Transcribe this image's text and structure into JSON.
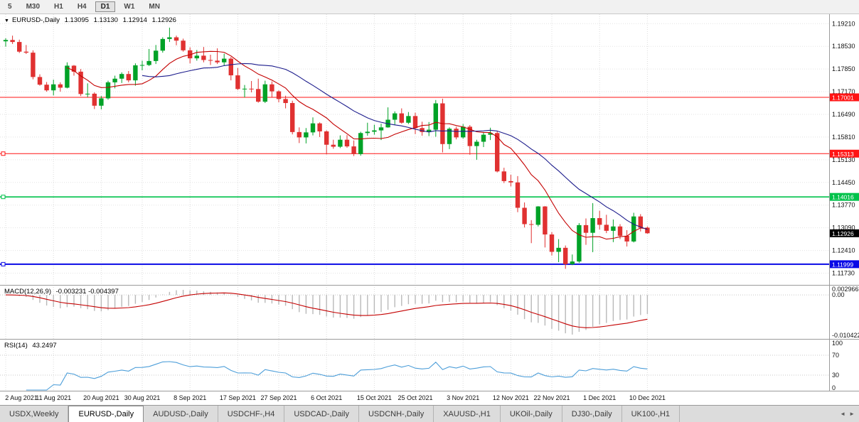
{
  "toolbar": {
    "timeframes": [
      {
        "label": "5",
        "active": false
      },
      {
        "label": "M30",
        "active": false
      },
      {
        "label": "H1",
        "active": false
      },
      {
        "label": "H4",
        "active": false
      },
      {
        "label": "D1",
        "active": true
      },
      {
        "label": "W1",
        "active": false
      },
      {
        "label": "MN",
        "active": false
      }
    ]
  },
  "chart": {
    "symbol": "EURUSD-,Daily",
    "open": "1.13095",
    "high": "1.13130",
    "low": "1.12914",
    "close": "1.12926"
  },
  "indicators": {
    "macd": {
      "name": "MACD(12,26,9)",
      "values": "-0.003231 -0.004397",
      "params": {
        "fast": 12,
        "slow": 26,
        "signal": 9
      },
      "axis": [
        "0.002966",
        "0.00",
        "-0.010422"
      ]
    },
    "rsi": {
      "name": "RSI(14)",
      "value": "43.2497",
      "period": 14,
      "levels": [
        70,
        30
      ],
      "axis": [
        "100",
        "70",
        "30",
        "0"
      ]
    }
  },
  "colors": {
    "bull": "#00A227",
    "bear": "#E03131",
    "ma_fast": "#C40000",
    "ma_slow": "#1C1C8C",
    "macd_hist": "#B9B9B9",
    "macd_signal": "#C40000",
    "rsi": "#4C9ED9",
    "grid": "#DDDDDD"
  },
  "chart_data": {
    "type": "candlestick",
    "symbol": "EURUSD",
    "timeframe": "Daily",
    "price_axis": {
      "labels": [
        1.1921,
        1.1853,
        1.1785,
        1.1717,
        1.1649,
        1.1581,
        1.1513,
        1.1445,
        1.1377,
        1.1309,
        1.1241,
        1.1173
      ],
      "max_view": 1.1945,
      "min_view": 1.114
    },
    "x_ticks": [
      {
        "i": 0,
        "label": "2 Aug 2021"
      },
      {
        "i": 7,
        "label": "11 Aug 2021"
      },
      {
        "i": 14,
        "label": "20 Aug 2021"
      },
      {
        "i": 20,
        "label": "30 Aug 2021"
      },
      {
        "i": 27,
        "label": "8 Sep 2021"
      },
      {
        "i": 34,
        "label": "17 Sep 2021"
      },
      {
        "i": 40,
        "label": "27 Sep 2021"
      },
      {
        "i": 47,
        "label": "6 Oct 2021"
      },
      {
        "i": 54,
        "label": "15 Oct 2021"
      },
      {
        "i": 60,
        "label": "25 Oct 2021"
      },
      {
        "i": 67,
        "label": "3 Nov 2021"
      },
      {
        "i": 74,
        "label": "12 Nov 2021"
      },
      {
        "i": 80,
        "label": "22 Nov 2021"
      },
      {
        "i": 87,
        "label": "1 Dec 2021"
      },
      {
        "i": 94,
        "label": "10 Dec 2021"
      }
    ],
    "hlines": [
      {
        "value": 1.17001,
        "label": "1.17001",
        "color": "#FF1414",
        "width": 1,
        "handle": false
      },
      {
        "value": 1.15313,
        "label": "1.15313",
        "color": "#FF1414",
        "width": 1,
        "handle": true
      },
      {
        "value": 1.14016,
        "label": "1.14016",
        "color": "#00C24B",
        "width": 1.6,
        "handle": true
      },
      {
        "value": 1.11999,
        "label": "1.11999",
        "color": "#0A0AE6",
        "width": 2,
        "handle": true
      }
    ],
    "price_tag": {
      "value": 1.12926,
      "label": "1.12926",
      "color": "#000000"
    },
    "moving_averages": [
      {
        "period": 10,
        "color": "#C40000"
      },
      {
        "period": 21,
        "color": "#1C1C8C"
      }
    ],
    "candles": [
      [
        1.1868,
        1.1877,
        1.1852,
        1.1872
      ],
      [
        1.1872,
        1.1885,
        1.186,
        1.1866
      ],
      [
        1.1866,
        1.1873,
        1.1833,
        1.1837
      ],
      [
        1.1837,
        1.1857,
        1.183,
        1.1834
      ],
      [
        1.1834,
        1.1841,
        1.1754,
        1.1761
      ],
      [
        1.1761,
        1.1769,
        1.1735,
        1.1738
      ],
      [
        1.1738,
        1.1746,
        1.1717,
        1.1721
      ],
      [
        1.1721,
        1.1753,
        1.1706,
        1.1739
      ],
      [
        1.1739,
        1.1745,
        1.1717,
        1.1729
      ],
      [
        1.1729,
        1.1805,
        1.1727,
        1.1795
      ],
      [
        1.1795,
        1.1797,
        1.1765,
        1.1777
      ],
      [
        1.1777,
        1.1785,
        1.1704,
        1.171
      ],
      [
        1.171,
        1.1742,
        1.1701,
        1.1711
      ],
      [
        1.1711,
        1.1715,
        1.1665,
        1.1675
      ],
      [
        1.1675,
        1.1704,
        1.1664,
        1.1697
      ],
      [
        1.1697,
        1.175,
        1.1693,
        1.1745
      ],
      [
        1.1745,
        1.1765,
        1.1727,
        1.1756
      ],
      [
        1.1756,
        1.1775,
        1.1743,
        1.177
      ],
      [
        1.177,
        1.1779,
        1.1745,
        1.1751
      ],
      [
        1.1751,
        1.1802,
        1.1735,
        1.1796
      ],
      [
        1.1796,
        1.181,
        1.1781,
        1.1797
      ],
      [
        1.1797,
        1.1845,
        1.1794,
        1.1809
      ],
      [
        1.1809,
        1.1857,
        1.18,
        1.184
      ],
      [
        1.184,
        1.188,
        1.1834,
        1.1875
      ],
      [
        1.1875,
        1.1909,
        1.1866,
        1.188
      ],
      [
        1.188,
        1.1885,
        1.1856,
        1.187
      ],
      [
        1.187,
        1.1876,
        1.1837,
        1.1841
      ],
      [
        1.1841,
        1.185,
        1.1802,
        1.1817
      ],
      [
        1.1817,
        1.1842,
        1.181,
        1.1825
      ],
      [
        1.1825,
        1.1851,
        1.1805,
        1.1812
      ],
      [
        1.1812,
        1.1828,
        1.1797,
        1.181
      ],
      [
        1.181,
        1.1847,
        1.18,
        1.1805
      ],
      [
        1.1805,
        1.1831,
        1.1795,
        1.1816
      ],
      [
        1.1816,
        1.1821,
        1.1751,
        1.1766
      ],
      [
        1.1766,
        1.1788,
        1.1722,
        1.1725
      ],
      [
        1.1725,
        1.1737,
        1.17,
        1.1726
      ],
      [
        1.1726,
        1.1749,
        1.1715,
        1.1725
      ],
      [
        1.1725,
        1.1756,
        1.1684,
        1.1687
      ],
      [
        1.1687,
        1.175,
        1.1683,
        1.1739
      ],
      [
        1.1739,
        1.1748,
        1.1701,
        1.1718
      ],
      [
        1.1718,
        1.1721,
        1.1685,
        1.1695
      ],
      [
        1.1695,
        1.1705,
        1.1667,
        1.1683
      ],
      [
        1.1683,
        1.169,
        1.1589,
        1.1596
      ],
      [
        1.1596,
        1.161,
        1.1563,
        1.158
      ],
      [
        1.158,
        1.1608,
        1.1562,
        1.1595
      ],
      [
        1.1595,
        1.164,
        1.1586,
        1.1622
      ],
      [
        1.1622,
        1.1625,
        1.1581,
        1.1598
      ],
      [
        1.1598,
        1.1601,
        1.1529,
        1.1558
      ],
      [
        1.1558,
        1.1573,
        1.1546,
        1.1552
      ],
      [
        1.1552,
        1.1586,
        1.1548,
        1.1573
      ],
      [
        1.1573,
        1.1587,
        1.1549,
        1.1553
      ],
      [
        1.1553,
        1.1571,
        1.1524,
        1.153
      ],
      [
        1.153,
        1.1597,
        1.1525,
        1.1593
      ],
      [
        1.1593,
        1.1624,
        1.1585,
        1.1597
      ],
      [
        1.1597,
        1.1618,
        1.1588,
        1.1601
      ],
      [
        1.1601,
        1.1621,
        1.1572,
        1.161
      ],
      [
        1.161,
        1.167,
        1.1609,
        1.1633
      ],
      [
        1.1633,
        1.1658,
        1.1617,
        1.1652
      ],
      [
        1.1652,
        1.1667,
        1.1621,
        1.1624
      ],
      [
        1.1624,
        1.1656,
        1.162,
        1.1644
      ],
      [
        1.1644,
        1.1654,
        1.159,
        1.1608
      ],
      [
        1.1608,
        1.1627,
        1.1585,
        1.1596
      ],
      [
        1.1596,
        1.1626,
        1.1584,
        1.1603
      ],
      [
        1.1603,
        1.1692,
        1.1582,
        1.1682
      ],
      [
        1.1682,
        1.1696,
        1.1535,
        1.156
      ],
      [
        1.156,
        1.161,
        1.1545,
        1.1606
      ],
      [
        1.1606,
        1.1612,
        1.1574,
        1.158
      ],
      [
        1.158,
        1.162,
        1.1576,
        1.1612
      ],
      [
        1.1612,
        1.1617,
        1.1528,
        1.1554
      ],
      [
        1.1554,
        1.1573,
        1.1513,
        1.1567
      ],
      [
        1.1567,
        1.1596,
        1.1551,
        1.1588
      ],
      [
        1.1588,
        1.1609,
        1.1572,
        1.1593
      ],
      [
        1.1593,
        1.1599,
        1.1475,
        1.1478
      ],
      [
        1.1478,
        1.1489,
        1.1443,
        1.1449
      ],
      [
        1.1449,
        1.1468,
        1.1433,
        1.1445
      ],
      [
        1.1445,
        1.1464,
        1.1356,
        1.1369
      ],
      [
        1.1369,
        1.1385,
        1.131,
        1.132
      ],
      [
        1.132,
        1.1332,
        1.1263,
        1.1318
      ],
      [
        1.1318,
        1.1374,
        1.1313,
        1.1373
      ],
      [
        1.1373,
        1.1374,
        1.125,
        1.1289
      ],
      [
        1.1289,
        1.1296,
        1.1226,
        1.1237
      ],
      [
        1.1237,
        1.1275,
        1.1206,
        1.1249
      ],
      [
        1.1249,
        1.1256,
        1.1186,
        1.12
      ],
      [
        1.12,
        1.1229,
        1.1197,
        1.1208
      ],
      [
        1.1208,
        1.1323,
        1.1204,
        1.1317
      ],
      [
        1.1317,
        1.1337,
        1.1258,
        1.1294
      ],
      [
        1.1294,
        1.1383,
        1.1236,
        1.1338
      ],
      [
        1.1338,
        1.136,
        1.1304,
        1.1318
      ],
      [
        1.1318,
        1.1348,
        1.1293,
        1.13
      ],
      [
        1.13,
        1.1334,
        1.1266,
        1.1313
      ],
      [
        1.1313,
        1.132,
        1.1275,
        1.1285
      ],
      [
        1.1285,
        1.1302,
        1.1253,
        1.1268
      ],
      [
        1.1268,
        1.1354,
        1.1265,
        1.1343
      ],
      [
        1.1343,
        1.135,
        1.1298,
        1.1309
      ],
      [
        1.13095,
        1.1313,
        1.12914,
        1.12926
      ]
    ]
  },
  "tabs": [
    {
      "label": "USDX,Weekly",
      "active": false
    },
    {
      "label": "EURUSD-,Daily",
      "active": true
    },
    {
      "label": "AUDUSD-,Daily",
      "active": false
    },
    {
      "label": "USDCHF-,H4",
      "active": false
    },
    {
      "label": "USDCAD-,Daily",
      "active": false
    },
    {
      "label": "USDCNH-,Daily",
      "active": false
    },
    {
      "label": "XAUUSD-,H1",
      "active": false
    },
    {
      "label": "UKOil-,Daily",
      "active": false
    },
    {
      "label": "DJ30-,Daily",
      "active": false
    },
    {
      "label": "UK100-,H1",
      "active": false
    }
  ],
  "tab_scroll": {
    "left": "◄",
    "right": "►"
  }
}
